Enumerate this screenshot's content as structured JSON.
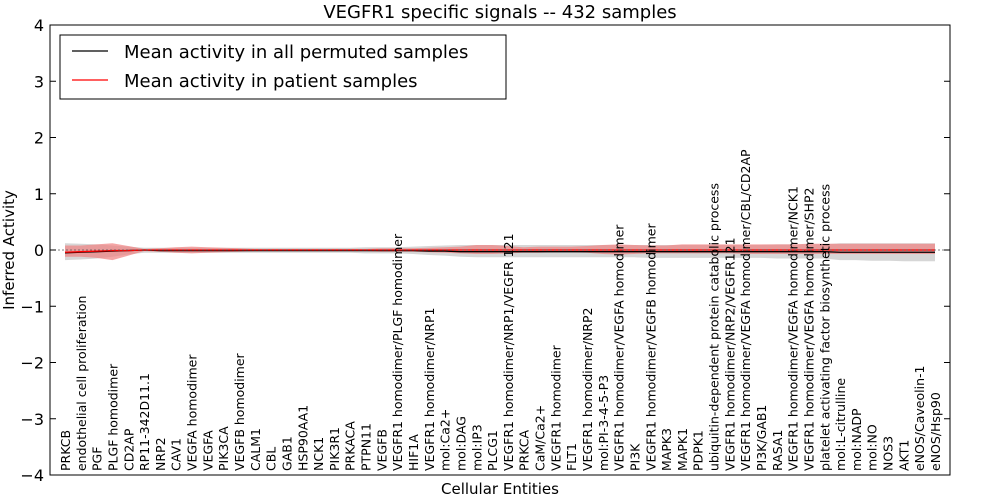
{
  "chart_data": {
    "type": "line",
    "title": "VEGFR1 specific signals -- 432 samples",
    "xlabel": "Cellular Entities",
    "ylabel": "Inferred Activity",
    "ylim": [
      -4,
      4
    ],
    "yticks": [
      -4,
      -3,
      -2,
      -1,
      0,
      1,
      2,
      3,
      4
    ],
    "legend_placement": "top-left",
    "grid": false,
    "categories": [
      "PRKCB",
      "endothelial cell proliferation",
      "PGF",
      "PLGF homodimer",
      "CD2AP",
      "RP11-342D11.1",
      "NRP2",
      "CAV1",
      "VEGFA homodimer",
      "VEGFA",
      "PIK3CA",
      "VEGFB homodimer",
      "CALM1",
      "CBL",
      "GAB1",
      "HSP90AA1",
      "NCK1",
      "PIK3R1",
      "PRKACA",
      "PTPN11",
      "VEGFB",
      "VEGFR1 homodimer/PLGF homodimer",
      "HIF1A",
      "VEGFR1 homodimer/NRP1",
      "mol:Ca2+",
      "mol:DAG",
      "mol:IP3",
      "PLCG1",
      "VEGFR1 homodimer/NRP1/VEGFR 121",
      "PRKCA",
      "CaM/Ca2+",
      "VEGFR1 homodimer",
      "FLT1",
      "VEGFR1 homodimer/NRP2",
      "mol:PI-3-4-5-P3",
      "VEGFR1 homodimer/VEGFA homodimer",
      "PI3K",
      "VEGFR1 homodimer/VEGFB homodimer",
      "MAPK3",
      "MAPK1",
      "PDPK1",
      "ubiquitin-dependent protein catabolic process",
      "VEGFR1 homodimer/NRP2/VEGFR121",
      "VEGFR1 homodimer/VEGFA homodimer/CBL/CD2AP",
      "PI3K/GAB1",
      "RASA1",
      "VEGFR1 homodimer/VEGFA homodimer/NCK1",
      "VEGFR1 homodimer/VEGFA homodimer/SHP2",
      "platelet activating factor biosynthetic process",
      "mol:L-citrulline",
      "mol:NADP",
      "mol:NO",
      "NOS3",
      "AKT1",
      "eNOS/Caveolin-1",
      "eNOS/Hsp90"
    ],
    "series": [
      {
        "name": "Mean activity in all permuted samples",
        "color": "#000000",
        "band_color": "#c8c8c8",
        "values": [
          -0.05,
          -0.04,
          -0.03,
          -0.02,
          -0.01,
          0,
          -0.01,
          -0.01,
          -0.01,
          -0.01,
          -0.01,
          -0.01,
          -0.01,
          -0.01,
          -0.01,
          -0.01,
          -0.01,
          -0.01,
          -0.01,
          -0.01,
          -0.01,
          -0.01,
          -0.01,
          -0.02,
          -0.02,
          -0.03,
          -0.03,
          -0.03,
          -0.03,
          -0.03,
          -0.03,
          -0.03,
          -0.03,
          -0.03,
          -0.03,
          -0.03,
          -0.03,
          -0.03,
          -0.03,
          -0.03,
          -0.03,
          -0.03,
          -0.03,
          -0.03,
          -0.03,
          -0.03,
          -0.03,
          -0.03,
          -0.03,
          -0.04,
          -0.04,
          -0.04,
          -0.04,
          -0.04,
          -0.04,
          -0.04
        ],
        "lower": [
          -0.18,
          -0.17,
          -0.15,
          -0.12,
          -0.08,
          -0.05,
          -0.05,
          -0.05,
          -0.05,
          -0.05,
          -0.05,
          -0.05,
          -0.05,
          -0.05,
          -0.05,
          -0.05,
          -0.05,
          -0.05,
          -0.05,
          -0.06,
          -0.06,
          -0.06,
          -0.07,
          -0.09,
          -0.1,
          -0.12,
          -0.13,
          -0.13,
          -0.13,
          -0.13,
          -0.13,
          -0.13,
          -0.13,
          -0.13,
          -0.13,
          -0.13,
          -0.13,
          -0.14,
          -0.14,
          -0.14,
          -0.14,
          -0.14,
          -0.14,
          -0.14,
          -0.14,
          -0.15,
          -0.15,
          -0.15,
          -0.15,
          -0.18,
          -0.18,
          -0.19,
          -0.19,
          -0.2,
          -0.2,
          -0.2
        ],
        "upper": [
          0.12,
          0.11,
          0.1,
          0.08,
          0.06,
          0.04,
          0.04,
          0.04,
          0.04,
          0.04,
          0.04,
          0.04,
          0.04,
          0.04,
          0.04,
          0.04,
          0.04,
          0.04,
          0.04,
          0.05,
          0.05,
          0.05,
          0.06,
          0.07,
          0.08,
          0.09,
          0.09,
          0.09,
          0.09,
          0.09,
          0.09,
          0.09,
          0.09,
          0.09,
          0.09,
          0.09,
          0.09,
          0.09,
          0.09,
          0.09,
          0.09,
          0.09,
          0.09,
          0.09,
          0.09,
          0.1,
          0.1,
          0.1,
          0.1,
          0.12,
          0.12,
          0.12,
          0.12,
          0.12,
          0.12,
          0.12
        ]
      },
      {
        "name": "Mean activity in patient samples",
        "color": "#ff0000",
        "band_color": "#f08080",
        "values": [
          -0.04,
          -0.03,
          -0.02,
          -0.01,
          -0.01,
          0,
          0,
          0,
          0,
          0,
          0,
          0,
          0,
          0,
          0,
          0,
          0,
          0,
          0,
          0,
          0,
          0,
          0,
          0,
          0,
          0,
          0,
          0,
          0,
          0,
          0,
          0,
          0,
          0,
          0,
          0,
          0,
          0,
          0,
          0,
          0,
          0,
          0,
          0,
          0,
          0,
          0,
          0,
          0,
          0,
          0,
          0,
          0,
          0,
          0,
          0
        ],
        "lower": [
          -0.12,
          -0.12,
          -0.14,
          -0.18,
          -0.1,
          -0.02,
          -0.03,
          -0.05,
          -0.06,
          -0.05,
          -0.04,
          -0.03,
          -0.02,
          -0.02,
          -0.02,
          -0.02,
          -0.02,
          -0.02,
          -0.02,
          -0.02,
          -0.03,
          -0.03,
          -0.03,
          -0.04,
          -0.05,
          -0.06,
          -0.07,
          -0.07,
          -0.06,
          -0.05,
          -0.05,
          -0.04,
          -0.04,
          -0.05,
          -0.07,
          -0.08,
          -0.07,
          -0.06,
          -0.06,
          -0.06,
          -0.06,
          -0.06,
          -0.06,
          -0.07,
          -0.07,
          -0.07,
          -0.07,
          -0.07,
          -0.07,
          -0.07,
          -0.07,
          -0.07,
          -0.07,
          -0.07,
          -0.07,
          -0.07
        ],
        "upper": [
          0.08,
          0.08,
          0.1,
          0.12,
          0.07,
          0.02,
          0.03,
          0.05,
          0.06,
          0.05,
          0.04,
          0.03,
          0.02,
          0.02,
          0.02,
          0.02,
          0.02,
          0.02,
          0.02,
          0.02,
          0.03,
          0.03,
          0.03,
          0.04,
          0.05,
          0.06,
          0.09,
          0.09,
          0.07,
          0.05,
          0.06,
          0.06,
          0.06,
          0.07,
          0.09,
          0.1,
          0.09,
          0.08,
          0.08,
          0.1,
          0.1,
          0.1,
          0.1,
          0.1,
          0.1,
          0.1,
          0.1,
          0.11,
          0.11,
          0.11,
          0.11,
          0.11,
          0.11,
          0.11,
          0.11,
          0.11
        ]
      }
    ]
  }
}
